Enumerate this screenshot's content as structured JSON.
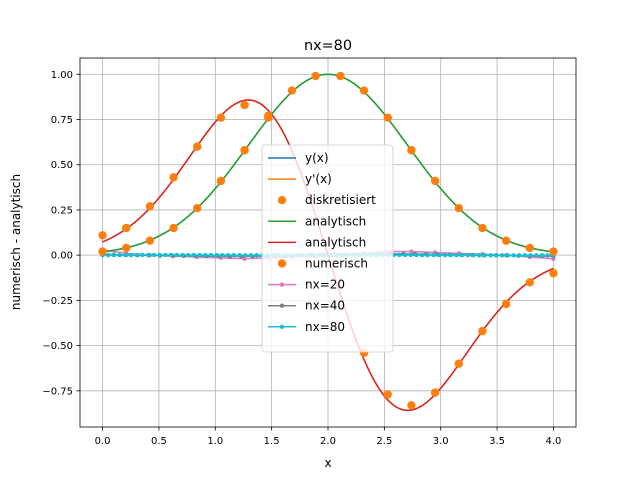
{
  "chart_data": {
    "type": "line",
    "title": "nx=80",
    "xlabel": "x",
    "ylabel": "numerisch - analytisch",
    "xlim": [
      -0.2,
      4.2
    ],
    "ylim": [
      -0.95,
      1.09
    ],
    "grid": true,
    "legend_position": "center",
    "xticks": [
      0.0,
      0.5,
      1.0,
      1.5,
      2.0,
      2.5,
      3.0,
      3.5,
      4.0
    ],
    "xtick_labels": [
      "0.0",
      "0.5",
      "1.0",
      "1.5",
      "2.0",
      "2.5",
      "3.0",
      "3.5",
      "4.0"
    ],
    "yticks": [
      -0.75,
      -0.5,
      -0.25,
      0.0,
      0.25,
      0.5,
      0.75,
      1.0
    ],
    "ytick_labels": [
      "−0.75",
      "−0.50",
      "−0.25",
      "0.00",
      "0.25",
      "0.50",
      "0.75",
      "1.00"
    ],
    "series": [
      {
        "name": "y(x)",
        "kind": "line",
        "color": "#1f77b4",
        "function": "exp(-(x-2)^2)",
        "x": [],
        "y": []
      },
      {
        "name": "y'(x)",
        "kind": "line",
        "color": "#ff7f0e",
        "function": "-2(x-2)exp(-(x-2)^2)",
        "x": [],
        "y": []
      },
      {
        "name": "diskretisiert",
        "kind": "scatter",
        "color": "#ff7f0e",
        "x": [
          0.0,
          0.21,
          0.42,
          0.63,
          0.84,
          1.05,
          1.26,
          1.47,
          1.68,
          1.89,
          2.11,
          2.32,
          2.53,
          2.74,
          2.95,
          3.16,
          3.37,
          3.58,
          3.79,
          4.0
        ],
        "y": [
          0.02,
          0.04,
          0.08,
          0.15,
          0.26,
          0.41,
          0.58,
          0.76,
          0.91,
          0.99,
          0.99,
          0.91,
          0.76,
          0.58,
          0.41,
          0.26,
          0.15,
          0.08,
          0.04,
          0.02
        ]
      },
      {
        "name": "analytisch",
        "kind": "line",
        "color": "#2ca02c",
        "function": "exp(-(x-2)^2)",
        "x": [],
        "y": []
      },
      {
        "name": "analytisch",
        "kind": "line",
        "color": "#d62728",
        "function": "-2(x-2)exp(-(x-2)^2)",
        "x": [],
        "y": []
      },
      {
        "name": "numerisch",
        "kind": "scatter",
        "color": "#ff7f0e",
        "x": [
          0.0,
          0.21,
          0.42,
          0.63,
          0.84,
          1.05,
          1.26,
          1.47,
          2.32,
          2.53,
          2.74,
          2.95,
          3.16,
          3.37,
          3.58,
          3.79,
          4.0
        ],
        "y": [
          0.11,
          0.15,
          0.27,
          0.43,
          0.6,
          0.76,
          0.83,
          0.77,
          -0.54,
          -0.77,
          -0.83,
          -0.76,
          -0.6,
          -0.42,
          -0.27,
          -0.15,
          -0.1
        ]
      },
      {
        "name": "nx=20",
        "kind": "linepoints",
        "color": "#e377c2",
        "x": [
          0.0,
          0.21,
          0.42,
          0.63,
          0.84,
          1.05,
          1.26,
          1.47,
          1.68,
          1.89,
          2.11,
          2.32,
          2.53,
          2.74,
          2.95,
          3.16,
          3.37,
          3.58,
          3.79,
          4.0
        ],
        "y": [
          0.03,
          0.01,
          0.0,
          -0.005,
          -0.01,
          -0.015,
          -0.02,
          -0.015,
          -0.01,
          -0.005,
          0.005,
          0.01,
          0.02,
          0.02,
          0.015,
          0.01,
          0.005,
          0.0,
          -0.01,
          -0.02
        ]
      },
      {
        "name": "nx=40",
        "kind": "linepoints",
        "color": "#7f7f7f",
        "x": [
          0.0,
          0.1,
          0.21,
          0.31,
          0.41,
          0.51,
          0.62,
          0.72,
          0.82,
          0.92,
          1.03,
          1.13,
          1.23,
          1.33,
          1.44,
          1.54,
          1.64,
          1.74,
          1.85,
          1.95,
          2.05,
          2.15,
          2.26,
          2.36,
          2.46,
          2.56,
          2.67,
          2.77,
          2.87,
          2.97,
          3.08,
          3.18,
          3.28,
          3.38,
          3.49,
          3.59,
          3.69,
          3.79,
          3.9,
          4.0
        ],
        "y": [
          0.005,
          0.003,
          0.001,
          0.0,
          -0.001,
          -0.002,
          -0.003,
          -0.004,
          -0.005,
          -0.006,
          -0.006,
          -0.007,
          -0.007,
          -0.006,
          -0.005,
          -0.004,
          -0.002,
          -0.001,
          0.0,
          0.001,
          0.002,
          0.003,
          0.004,
          0.005,
          0.006,
          0.007,
          0.007,
          0.006,
          0.005,
          0.004,
          0.003,
          0.002,
          0.001,
          0.0,
          -0.001,
          -0.002,
          -0.003,
          -0.004,
          -0.005,
          -0.006
        ]
      },
      {
        "name": "nx=80",
        "kind": "linepoints",
        "color": "#17becf",
        "noise": 0.001,
        "x": [],
        "y": []
      }
    ]
  }
}
